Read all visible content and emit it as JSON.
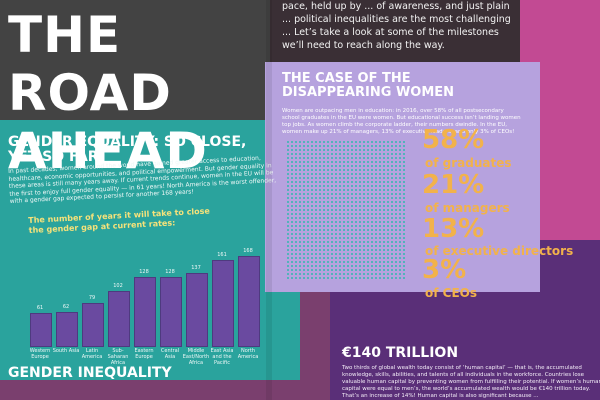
{
  "top_title": "THE ROAD AHEAD",
  "top_intro": "pace, held up by ... of awareness, and just plain ... political inequalities are the most challenging ... Let’s take a look at some of the milestones we’ll need to reach along the way.",
  "gender_equality": {
    "title": "GENDER EQUALITY: SO CLOSE, YET SO FAR",
    "body": "In past decades, women around the world have gained greater access to education, healthcare, economic opportunities, and political empowerment. But gender equality in these areas is still many years away. If current trends continue, women in the EU will be the first to enjoy full gender equality — in 61 years! North America is the worst offender, with a gender gap expected to persist for another 168 years!",
    "chart_title": "The number of years it will take to close the gender gap at current rates:"
  },
  "chart_data": {
    "type": "bar",
    "title": "The number of years it will take to close the gender gap at current rates:",
    "categories": [
      "Western Europe",
      "South Asia",
      "Latin America",
      "Sub-Saharan Africa",
      "Eastern Europe",
      "Central Asia",
      "Middle East/North Africa",
      "East Asia and the Pacific",
      "North America"
    ],
    "values": [
      61,
      62,
      79,
      102,
      128,
      128,
      137,
      161,
      168
    ],
    "ylim": [
      0,
      180
    ],
    "colors": {
      "bar": "#6a4aa0",
      "text": "#eef8f7"
    }
  },
  "women": {
    "title": "THE CASE OF THE DISAPPEARING WOMEN",
    "body": "Women are outpacing men in education: in 2016, over 58% of all postsecondary school graduates in the EU were women. But educational success isn’t landing women top jobs. As women climb the corporate ladder, their numbers dwindle. In the EU, women make up 21% of managers, 13% of executive leaders, and only 3% of CEOs!",
    "stats": [
      {
        "value": "58%",
        "label": "of graduates"
      },
      {
        "value": "21%",
        "label": "of managers"
      },
      {
        "value": "13%",
        "label": "of executive directors"
      },
      {
        "value": "3%",
        "label": "of CEOs"
      }
    ]
  },
  "trillion": {
    "title": "€140 TRILLION",
    "body": "Two thirds of global wealth today consist of ‘human capital’ — that is, the accumulated knowledge, skills, abilities, and talents of all individuals in the workforce. Countries lose valuable human capital by preventing women from fulfilling their potential. If women’s human capital were equal to men’s, the world’s accumulated wealth would be €140 trillion today. That’s an increase of 14%! Human capital is also significant because ..."
  },
  "inequality": {
    "title": "GENDER INEQUALITY"
  }
}
